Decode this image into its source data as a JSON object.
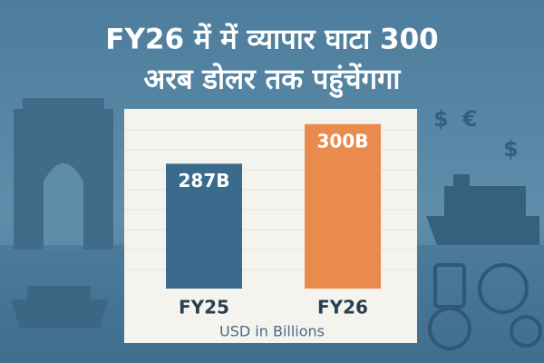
{
  "chart_data": {
    "type": "bar",
    "title": [
      "FY26 में में व्यापार घाटा 300",
      "अरब डोलर तक पहुंचेंगगा"
    ],
    "categories": [
      "FY25",
      "FY26"
    ],
    "values": [
      287,
      300
    ],
    "value_labels": [
      "287B",
      "300B"
    ],
    "colors": [
      "#3b6b8c",
      "#e98b4c"
    ],
    "ylim": [
      246,
      305
    ],
    "y_label": "USD in Billions"
  }
}
